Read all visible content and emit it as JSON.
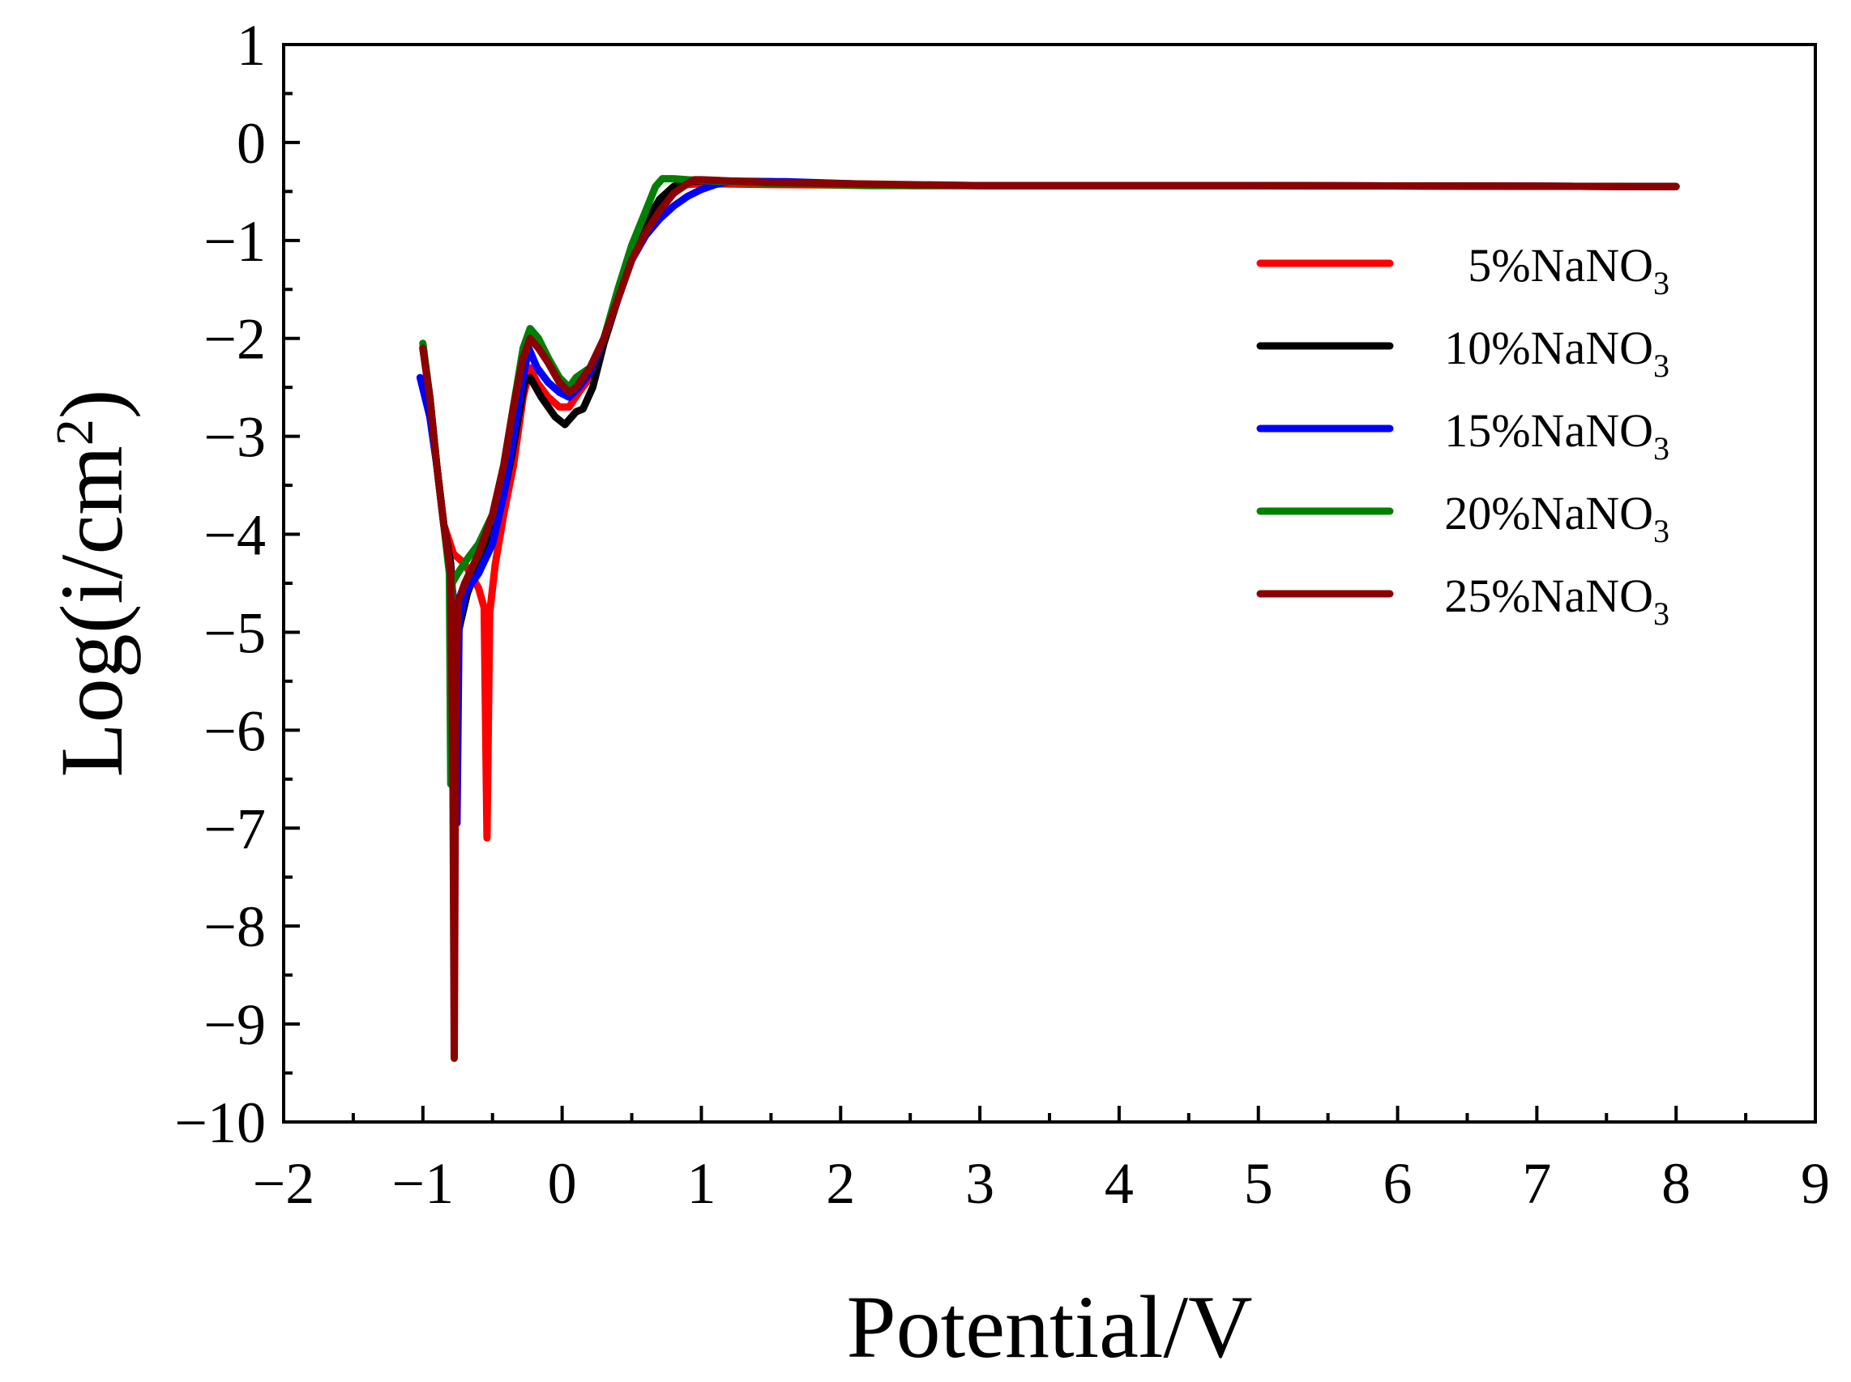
{
  "chart_data": {
    "type": "line",
    "title": "",
    "xlabel": "Potential/V",
    "ylabel_main": "Log(i/cm",
    "ylabel_sup": "2",
    "ylabel_close": ")",
    "xlim": [
      -2,
      9
    ],
    "ylim": [
      -10,
      1
    ],
    "xticks": [
      -2,
      -1,
      0,
      1,
      2,
      3,
      4,
      5,
      6,
      7,
      8,
      9
    ],
    "yticks": [
      1,
      0,
      -1,
      -2,
      -3,
      -4,
      -5,
      -6,
      -7,
      -8,
      -9,
      -10
    ],
    "xtick_labels": [
      "−2",
      "−1",
      "0",
      "1",
      "2",
      "3",
      "4",
      "5",
      "6",
      "7",
      "8",
      "9"
    ],
    "ytick_labels": [
      "1",
      "0",
      "−1",
      "−2",
      "−3",
      "−4",
      "−5",
      "−6",
      "−7",
      "−8",
      "−9",
      "−10"
    ],
    "legend_position": "top-right",
    "series": [
      {
        "name": "5%NaNO",
        "subscript": "3",
        "color": "#ff0000",
        "points": [
          [
            -1.0,
            -2.1
          ],
          [
            -0.95,
            -2.6
          ],
          [
            -0.9,
            -3.3
          ],
          [
            -0.85,
            -3.9
          ],
          [
            -0.78,
            -4.2
          ],
          [
            -0.7,
            -4.3
          ],
          [
            -0.6,
            -4.55
          ],
          [
            -0.56,
            -4.75
          ],
          [
            -0.54,
            -7.1
          ],
          [
            -0.52,
            -4.8
          ],
          [
            -0.48,
            -4.3
          ],
          [
            -0.42,
            -3.8
          ],
          [
            -0.35,
            -3.3
          ],
          [
            -0.28,
            -2.6
          ],
          [
            -0.23,
            -2.3
          ],
          [
            -0.18,
            -2.45
          ],
          [
            -0.1,
            -2.6
          ],
          [
            -0.02,
            -2.7
          ],
          [
            0.05,
            -2.7
          ],
          [
            0.12,
            -2.55
          ],
          [
            0.2,
            -2.4
          ],
          [
            0.3,
            -2.0
          ],
          [
            0.4,
            -1.55
          ],
          [
            0.5,
            -1.1
          ],
          [
            0.6,
            -0.8
          ],
          [
            0.7,
            -0.6
          ],
          [
            0.8,
            -0.48
          ],
          [
            0.9,
            -0.43
          ],
          [
            1.0,
            -0.42
          ],
          [
            1.5,
            -0.43
          ],
          [
            3.0,
            -0.44
          ],
          [
            5.0,
            -0.44
          ],
          [
            8.0,
            -0.45
          ]
        ]
      },
      {
        "name": "10%NaNO",
        "subscript": "3",
        "color": "#000000",
        "points": [
          [
            -1.0,
            -2.1
          ],
          [
            -0.95,
            -2.6
          ],
          [
            -0.9,
            -3.3
          ],
          [
            -0.85,
            -3.9
          ],
          [
            -0.8,
            -4.3
          ],
          [
            -0.78,
            -4.8
          ],
          [
            -0.76,
            -5.1
          ],
          [
            -0.73,
            -4.9
          ],
          [
            -0.68,
            -4.6
          ],
          [
            -0.6,
            -4.3
          ],
          [
            -0.5,
            -4.0
          ],
          [
            -0.42,
            -3.6
          ],
          [
            -0.35,
            -3.1
          ],
          [
            -0.27,
            -2.45
          ],
          [
            -0.23,
            -2.4
          ],
          [
            -0.15,
            -2.6
          ],
          [
            -0.05,
            -2.8
          ],
          [
            0.02,
            -2.88
          ],
          [
            0.1,
            -2.75
          ],
          [
            0.15,
            -2.72
          ],
          [
            0.22,
            -2.5
          ],
          [
            0.3,
            -2.05
          ],
          [
            0.4,
            -1.6
          ],
          [
            0.5,
            -1.15
          ],
          [
            0.6,
            -0.82
          ],
          [
            0.7,
            -0.58
          ],
          [
            0.8,
            -0.45
          ],
          [
            0.9,
            -0.4
          ],
          [
            1.0,
            -0.39
          ],
          [
            1.5,
            -0.4
          ],
          [
            2.0,
            -0.43
          ],
          [
            3.0,
            -0.44
          ],
          [
            5.0,
            -0.44
          ],
          [
            8.0,
            -0.45
          ]
        ]
      },
      {
        "name": "15%NaNO",
        "subscript": "3",
        "color": "#0000ff",
        "points": [
          [
            -1.02,
            -2.4
          ],
          [
            -0.95,
            -2.8
          ],
          [
            -0.9,
            -3.3
          ],
          [
            -0.85,
            -3.9
          ],
          [
            -0.8,
            -4.4
          ],
          [
            -0.77,
            -4.8
          ],
          [
            -0.755,
            -6.95
          ],
          [
            -0.74,
            -4.9
          ],
          [
            -0.7,
            -4.6
          ],
          [
            -0.6,
            -4.4
          ],
          [
            -0.5,
            -4.1
          ],
          [
            -0.42,
            -3.6
          ],
          [
            -0.35,
            -3.0
          ],
          [
            -0.28,
            -2.4
          ],
          [
            -0.24,
            -2.1
          ],
          [
            -0.18,
            -2.3
          ],
          [
            -0.1,
            -2.45
          ],
          [
            -0.02,
            -2.55
          ],
          [
            0.05,
            -2.6
          ],
          [
            0.12,
            -2.5
          ],
          [
            0.2,
            -2.35
          ],
          [
            0.3,
            -2.0
          ],
          [
            0.4,
            -1.6
          ],
          [
            0.5,
            -1.2
          ],
          [
            0.6,
            -0.95
          ],
          [
            0.7,
            -0.78
          ],
          [
            0.8,
            -0.65
          ],
          [
            0.9,
            -0.55
          ],
          [
            1.0,
            -0.48
          ],
          [
            1.1,
            -0.43
          ],
          [
            1.2,
            -0.4
          ],
          [
            1.6,
            -0.4
          ],
          [
            2.5,
            -0.44
          ],
          [
            5.0,
            -0.44
          ],
          [
            8.0,
            -0.45
          ]
        ]
      },
      {
        "name": "20%NaNO",
        "subscript": "3",
        "color": "#008000",
        "points": [
          [
            -1.0,
            -2.05
          ],
          [
            -0.95,
            -2.6
          ],
          [
            -0.9,
            -3.3
          ],
          [
            -0.85,
            -3.9
          ],
          [
            -0.81,
            -4.4
          ],
          [
            -0.8,
            -6.55
          ],
          [
            -0.79,
            -4.5
          ],
          [
            -0.75,
            -4.4
          ],
          [
            -0.68,
            -4.25
          ],
          [
            -0.6,
            -4.1
          ],
          [
            -0.5,
            -3.8
          ],
          [
            -0.42,
            -3.3
          ],
          [
            -0.35,
            -2.7
          ],
          [
            -0.28,
            -2.1
          ],
          [
            -0.23,
            -1.9
          ],
          [
            -0.17,
            -2.0
          ],
          [
            -0.1,
            -2.2
          ],
          [
            -0.02,
            -2.4
          ],
          [
            0.05,
            -2.5
          ],
          [
            0.1,
            -2.4
          ],
          [
            0.2,
            -2.3
          ],
          [
            0.3,
            -2.0
          ],
          [
            0.4,
            -1.5
          ],
          [
            0.5,
            -1.05
          ],
          [
            0.6,
            -0.7
          ],
          [
            0.67,
            -0.45
          ],
          [
            0.72,
            -0.37
          ],
          [
            0.8,
            -0.37
          ],
          [
            0.9,
            -0.38
          ],
          [
            1.5,
            -0.42
          ],
          [
            2.2,
            -0.44
          ],
          [
            5.0,
            -0.44
          ],
          [
            8.0,
            -0.45
          ]
        ]
      },
      {
        "name": "25%NaNO",
        "subscript": "3",
        "color": "#8b0000",
        "points": [
          [
            -1.0,
            -2.1
          ],
          [
            -0.95,
            -2.6
          ],
          [
            -0.9,
            -3.3
          ],
          [
            -0.85,
            -3.9
          ],
          [
            -0.8,
            -4.4
          ],
          [
            -0.785,
            -6.3
          ],
          [
            -0.775,
            -9.35
          ],
          [
            -0.765,
            -6.0
          ],
          [
            -0.75,
            -4.7
          ],
          [
            -0.7,
            -4.5
          ],
          [
            -0.6,
            -4.2
          ],
          [
            -0.5,
            -3.8
          ],
          [
            -0.42,
            -3.3
          ],
          [
            -0.35,
            -2.7
          ],
          [
            -0.28,
            -2.2
          ],
          [
            -0.23,
            -2.0
          ],
          [
            -0.17,
            -2.1
          ],
          [
            -0.1,
            -2.25
          ],
          [
            -0.02,
            -2.45
          ],
          [
            0.05,
            -2.55
          ],
          [
            0.1,
            -2.5
          ],
          [
            0.2,
            -2.3
          ],
          [
            0.3,
            -2.0
          ],
          [
            0.4,
            -1.6
          ],
          [
            0.5,
            -1.2
          ],
          [
            0.6,
            -0.92
          ],
          [
            0.7,
            -0.7
          ],
          [
            0.8,
            -0.52
          ],
          [
            0.9,
            -0.42
          ],
          [
            0.95,
            -0.38
          ],
          [
            1.0,
            -0.38
          ],
          [
            1.5,
            -0.41
          ],
          [
            3.0,
            -0.44
          ],
          [
            5.0,
            -0.44
          ],
          [
            8.0,
            -0.45
          ]
        ]
      }
    ]
  }
}
